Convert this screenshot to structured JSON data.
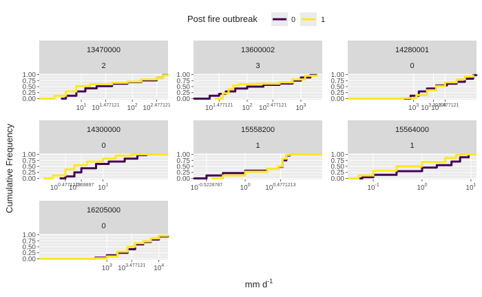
{
  "figure": {
    "legend_title": "Post fire outbreak",
    "legend_items": [
      {
        "label": "0",
        "color": "#440154"
      },
      {
        "label": "1",
        "color": "#FDE725"
      }
    ]
  },
  "chart_data": {
    "type": "line",
    "subtype": "faceted ecdf",
    "xlabel_base": "mm d",
    "xlabel_sup": "-1",
    "ylabel": "Cumulative Frequency",
    "y_ticks": [
      "0.00",
      "0.25",
      "0.50",
      "0.75",
      "1.00"
    ],
    "x_scale": "log10",
    "grid": true,
    "legend_position": "top",
    "colors": {
      "0": "#440154",
      "1": "#FDE725"
    },
    "panels": [
      {
        "station": "13470000",
        "count": "2",
        "xlim": [
          1.5,
          500
        ],
        "x_ticks": [
          {
            "base": "10",
            "exp": "1",
            "v": 10
          },
          {
            "base": "10",
            "exp": "1.477121",
            "v": 30
          },
          {
            "base": "10",
            "exp": "2",
            "v": 100
          },
          {
            "base": "10",
            "exp": "2.477121",
            "v": 300
          }
        ],
        "series": [
          {
            "name": "0",
            "points": [
              [
                4,
                0.0
              ],
              [
                5,
                0.12
              ],
              [
                8,
                0.3
              ],
              [
                12,
                0.43
              ],
              [
                20,
                0.52
              ],
              [
                40,
                0.62
              ],
              [
                80,
                0.69
              ],
              [
                150,
                0.76
              ],
              [
                300,
                0.88
              ],
              [
                400,
                0.98
              ],
              [
                500,
                1.0
              ]
            ]
          },
          {
            "name": "1",
            "points": [
              [
                1.5,
                0.0
              ],
              [
                3,
                0.12
              ],
              [
                5,
                0.3
              ],
              [
                8,
                0.52
              ],
              [
                15,
                0.6
              ],
              [
                40,
                0.66
              ],
              [
                80,
                0.71
              ],
              [
                150,
                0.8
              ],
              [
                300,
                0.88
              ],
              [
                400,
                0.97
              ],
              [
                500,
                1.0
              ]
            ]
          }
        ]
      },
      {
        "station": "13600002",
        "count": "3",
        "xlim": [
          10,
          2500
        ],
        "x_ticks": [
          {
            "base": "10",
            "exp": "1.477121",
            "v": 30
          },
          {
            "base": "10",
            "exp": "2",
            "v": 100
          },
          {
            "base": "10",
            "exp": "2.477121",
            "v": 300
          },
          {
            "base": "10",
            "exp": "3",
            "v": 1000
          }
        ],
        "series": [
          {
            "name": "0",
            "points": [
              [
                10,
                0.0
              ],
              [
                20,
                0.12
              ],
              [
                30,
                0.2
              ],
              [
                40,
                0.3
              ],
              [
                60,
                0.42
              ],
              [
                100,
                0.5
              ],
              [
                200,
                0.57
              ],
              [
                400,
                0.63
              ],
              [
                700,
                0.75
              ],
              [
                1000,
                0.88
              ],
              [
                1500,
                0.98
              ],
              [
                2000,
                1.0
              ]
            ]
          },
          {
            "name": "1",
            "points": [
              [
                25,
                0.0
              ],
              [
                35,
                0.22
              ],
              [
                45,
                0.4
              ],
              [
                55,
                0.55
              ],
              [
                70,
                0.6
              ],
              [
                150,
                0.62
              ],
              [
                400,
                0.68
              ],
              [
                700,
                0.8
              ],
              [
                1200,
                0.95
              ],
              [
                2000,
                1.0
              ]
            ]
          }
        ]
      },
      {
        "station": "14280001",
        "count": "0",
        "xlim": [
          100,
          9000
        ],
        "x_ticks": [
          {
            "base": "10",
            "exp": "3",
            "v": 1000
          },
          {
            "base": "10",
            "exp": "3.30103",
            "v": 2000
          },
          {
            "base": "10",
            "exp": "3.477121",
            "v": 3000
          }
        ],
        "series": [
          {
            "name": "0",
            "points": [
              [
                600,
                0.0
              ],
              [
                900,
                0.12
              ],
              [
                1200,
                0.3
              ],
              [
                1600,
                0.42
              ],
              [
                2200,
                0.55
              ],
              [
                3200,
                0.62
              ],
              [
                4500,
                0.7
              ],
              [
                6000,
                0.83
              ],
              [
                8000,
                0.98
              ],
              [
                9000,
                1.0
              ]
            ]
          },
          {
            "name": "1",
            "points": [
              [
                100,
                0.0
              ],
              [
                700,
                0.02
              ],
              [
                1100,
                0.15
              ],
              [
                1600,
                0.35
              ],
              [
                2200,
                0.52
              ],
              [
                3000,
                0.68
              ],
              [
                4500,
                0.8
              ],
              [
                6000,
                0.92
              ],
              [
                8000,
                1.0
              ]
            ]
          }
        ]
      },
      {
        "station": "14300000",
        "count": "0",
        "xlim": [
          1.3,
          80
        ],
        "x_ticks": [
          {
            "base": "10",
            "exp": "0.4771213",
            "v": 3
          },
          {
            "base": "10",
            "exp": "0.69897",
            "v": 5
          },
          {
            "base": "10",
            "exp": "1",
            "v": 10
          }
        ],
        "series": [
          {
            "name": "0",
            "points": [
              [
                2.5,
                0.0
              ],
              [
                3,
                0.08
              ],
              [
                4,
                0.25
              ],
              [
                5,
                0.42
              ],
              [
                8,
                0.6
              ],
              [
                12,
                0.7
              ],
              [
                20,
                0.82
              ],
              [
                30,
                0.97
              ],
              [
                40,
                1.0
              ],
              [
                80,
                1.0
              ]
            ]
          },
          {
            "name": "1",
            "points": [
              [
                1.5,
                0.0
              ],
              [
                2,
                0.12
              ],
              [
                3,
                0.38
              ],
              [
                4,
                0.55
              ],
              [
                6,
                0.7
              ],
              [
                10,
                0.82
              ],
              [
                15,
                0.95
              ],
              [
                25,
                1.0
              ],
              [
                80,
                1.0
              ]
            ]
          }
        ]
      },
      {
        "station": "15558200",
        "count": "1",
        "xlim": [
          0.2,
          11
        ],
        "x_ticks": [
          {
            "base": "10",
            "exp": "-0.5228787",
            "v": 0.3
          },
          {
            "base": "10",
            "exp": "0",
            "v": 1
          },
          {
            "base": "10",
            "exp": "0.4771213",
            "v": 3
          }
        ],
        "series": [
          {
            "name": "0",
            "points": [
              [
                0.2,
                0.0
              ],
              [
                0.3,
                0.12
              ],
              [
                0.5,
                0.22
              ],
              [
                1,
                0.32
              ],
              [
                2,
                0.4
              ],
              [
                2.8,
                0.48
              ],
              [
                3.2,
                0.75
              ],
              [
                3.6,
                0.95
              ],
              [
                4,
                1.0
              ],
              [
                11,
                1.0
              ]
            ]
          },
          {
            "name": "1",
            "points": [
              [
                0.35,
                0.0
              ],
              [
                0.5,
                0.12
              ],
              [
                1,
                0.28
              ],
              [
                2,
                0.4
              ],
              [
                2.8,
                0.5
              ],
              [
                3.2,
                0.82
              ],
              [
                3.6,
                0.98
              ],
              [
                4,
                1.0
              ],
              [
                11,
                1.0
              ]
            ]
          }
        ]
      },
      {
        "station": "15564000",
        "count": "1",
        "xlim": [
          0.03,
          13
        ],
        "x_ticks": [
          {
            "base": "10",
            "exp": "-1",
            "v": 0.1
          },
          {
            "base": "10",
            "exp": "0",
            "v": 1
          },
          {
            "base": "10",
            "exp": "1",
            "v": 10
          }
        ],
        "series": [
          {
            "name": "0",
            "points": [
              [
                0.03,
                0.0
              ],
              [
                0.06,
                0.05
              ],
              [
                0.1,
                0.15
              ],
              [
                0.3,
                0.3
              ],
              [
                1,
                0.45
              ],
              [
                2,
                0.55
              ],
              [
                4,
                0.7
              ],
              [
                6,
                0.88
              ],
              [
                9,
                1.0
              ],
              [
                13,
                1.0
              ]
            ]
          },
          {
            "name": "1",
            "points": [
              [
                0.03,
                0.0
              ],
              [
                0.05,
                0.12
              ],
              [
                0.1,
                0.32
              ],
              [
                0.3,
                0.5
              ],
              [
                1,
                0.68
              ],
              [
                3,
                0.85
              ],
              [
                5,
                0.98
              ],
              [
                6,
                1.0
              ],
              [
                13,
                1.0
              ]
            ]
          }
        ]
      },
      {
        "station": "16205000",
        "count": "0",
        "xlim": [
          50,
          15000
        ],
        "x_ticks": [
          {
            "base": "10",
            "exp": "3",
            "v": 1000
          },
          {
            "base": "10",
            "exp": "3.477121",
            "v": 3000
          },
          {
            "base": "10",
            "exp": "4",
            "v": 10000
          }
        ],
        "series": [
          {
            "name": "0",
            "points": [
              [
                300,
                0.0
              ],
              [
                600,
                0.05
              ],
              [
                1000,
                0.15
              ],
              [
                1600,
                0.25
              ],
              [
                2500,
                0.4
              ],
              [
                3500,
                0.6
              ],
              [
                5000,
                0.7
              ],
              [
                7000,
                0.8
              ],
              [
                10000,
                0.93
              ],
              [
                15000,
                1.0
              ]
            ]
          },
          {
            "name": "1",
            "points": [
              [
                50,
                0.0
              ],
              [
                600,
                0.02
              ],
              [
                1000,
                0.1
              ],
              [
                1600,
                0.3
              ],
              [
                2500,
                0.5
              ],
              [
                3500,
                0.65
              ],
              [
                5000,
                0.73
              ],
              [
                7000,
                0.85
              ],
              [
                10000,
                0.96
              ],
              [
                15000,
                1.0
              ]
            ]
          }
        ]
      }
    ]
  }
}
